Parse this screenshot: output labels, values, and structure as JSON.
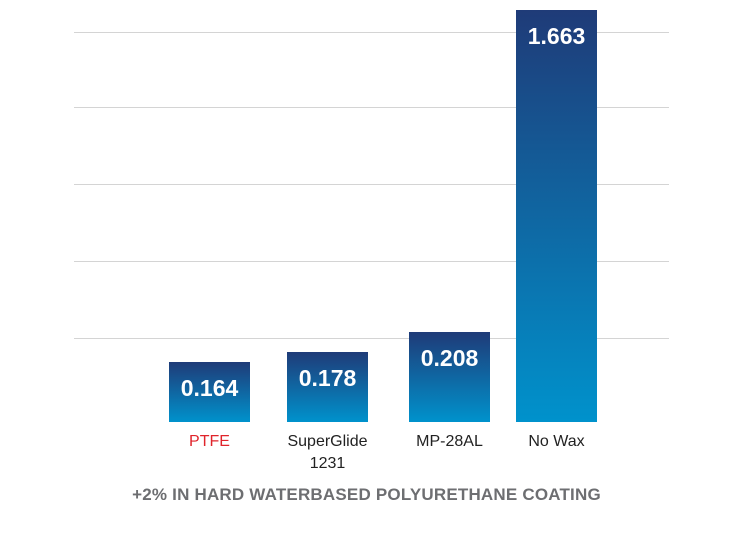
{
  "colors": {
    "bar_top": "#1f3b78",
    "bar_bottom": "#0092cc",
    "label_default": "#222222",
    "label_highlight": "#e0242b",
    "footer": "#6d6e71"
  },
  "chart_data": {
    "type": "bar",
    "title": "+2% IN HARD WATERBASED POLYURETHANE COATING",
    "xlabel": "",
    "ylabel": "",
    "categories": [
      {
        "label_lines": [
          "PTFE"
        ],
        "highlight": true
      },
      {
        "label_lines": [
          "SuperGlide",
          "1231"
        ],
        "highlight": false
      },
      {
        "label_lines": [
          "MP-28AL"
        ],
        "highlight": false
      },
      {
        "label_lines": [
          "No Wax"
        ],
        "highlight": false
      }
    ],
    "values": [
      0.164,
      0.178,
      0.208,
      1.663
    ],
    "value_labels": [
      "0.164",
      "0.178",
      "0.208",
      "1.663"
    ],
    "grid": true,
    "legend": "none"
  }
}
